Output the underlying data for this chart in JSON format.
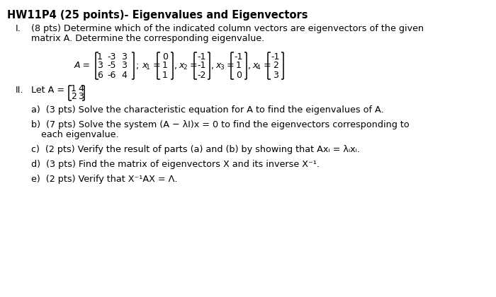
{
  "title": "HW11P4 (25 points)- Eigenvalues and Eigenvectors",
  "background_color": "#ffffff",
  "text_color": "#000000",
  "section_I_line1": "(8 pts) Determine which of the indicated column vectors are eigenvectors of the given",
  "section_I_line2": "matrix A. Determine the corresponding eigenvalue.",
  "part_a": "a)  (3 pts) Solve the characteristic equation for A to find the eigenvalues of A.",
  "part_b1": "b)  (7 pts) Solve the system (A − λI)x = 0 to find the eigenvectors corresponding to",
  "part_b2": "      each eigenvalue.",
  "part_c": "c)  (2 pts) Verify the result of parts (a) and (b) by showing that Axᵢ = λᵢxᵢ.",
  "part_d": "d)  (3 pts) Find the matrix of eigenvectors X and its inverse X⁻¹.",
  "part_e": "e)  (2 pts) Verify that X⁻¹AX = Λ.",
  "mat_A_rows": [
    [
      "1",
      "-3",
      "3"
    ],
    [
      "3",
      "-5",
      "3"
    ],
    [
      "6",
      "-6",
      "4"
    ]
  ],
  "vec_x1": [
    "0",
    "1",
    "1"
  ],
  "vec_x2": [
    "-1",
    "-1",
    "-2"
  ],
  "vec_x3": [
    "-1",
    "1",
    "0"
  ],
  "vec_x4": [
    "-1",
    "2",
    "3"
  ],
  "mat2_rows": [
    [
      "1",
      "4"
    ],
    [
      "2",
      "3"
    ]
  ],
  "fs_title": 10.5,
  "fs_body": 9.2,
  "fs_mat": 9.0,
  "fs_sub": 6.5
}
